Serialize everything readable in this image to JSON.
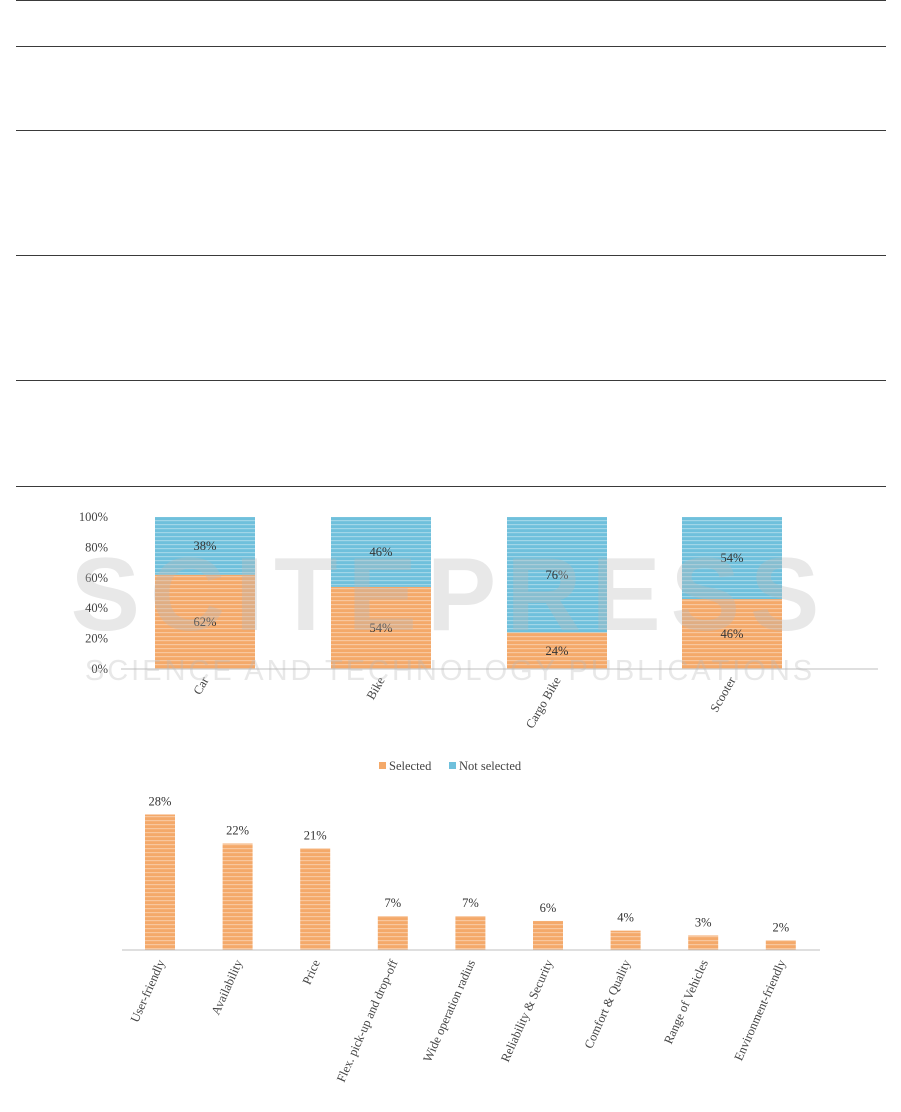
{
  "watermark": {
    "text_main": "SCITEPRESS",
    "text_sub": "SCIENCE AND TECHNOLOGY PUBLICATIONS"
  },
  "chart_data": [
    {
      "type": "bar",
      "stacked": true,
      "categories": [
        "Car",
        "Bike",
        "Cargo Bike",
        "Scooter"
      ],
      "series": [
        {
          "name": "Selected",
          "values": [
            62,
            54,
            24,
            46
          ],
          "labels": [
            "62%",
            "54%",
            "24%",
            "46%"
          ],
          "color": "#F4A96A"
        },
        {
          "name": "Not selected",
          "values": [
            38,
            46,
            76,
            54
          ],
          "labels": [
            "38%",
            "46%",
            "76%",
            "54%"
          ],
          "color": "#6FC0DC"
        }
      ],
      "ylim": [
        0,
        100
      ],
      "yticks": [
        "0%",
        "20%",
        "40%",
        "60%",
        "80%",
        "100%"
      ],
      "legend_position": "bottom",
      "grid": false
    },
    {
      "type": "bar",
      "categories": [
        "User-friendly",
        "Availability",
        "Price",
        "Flex. pick-up and drop-off",
        "Wide operation radius",
        "Reliability & Security",
        "Comfort & Quality",
        "Range of Vehicles",
        "Environment-friendly"
      ],
      "values": [
        28,
        22,
        21,
        7,
        7,
        6,
        4,
        3,
        2
      ],
      "labels": [
        "28%",
        "22%",
        "21%",
        "7%",
        "7%",
        "6%",
        "4%",
        "3%",
        "2%"
      ],
      "color": "#F4A96A",
      "grid": false
    }
  ]
}
